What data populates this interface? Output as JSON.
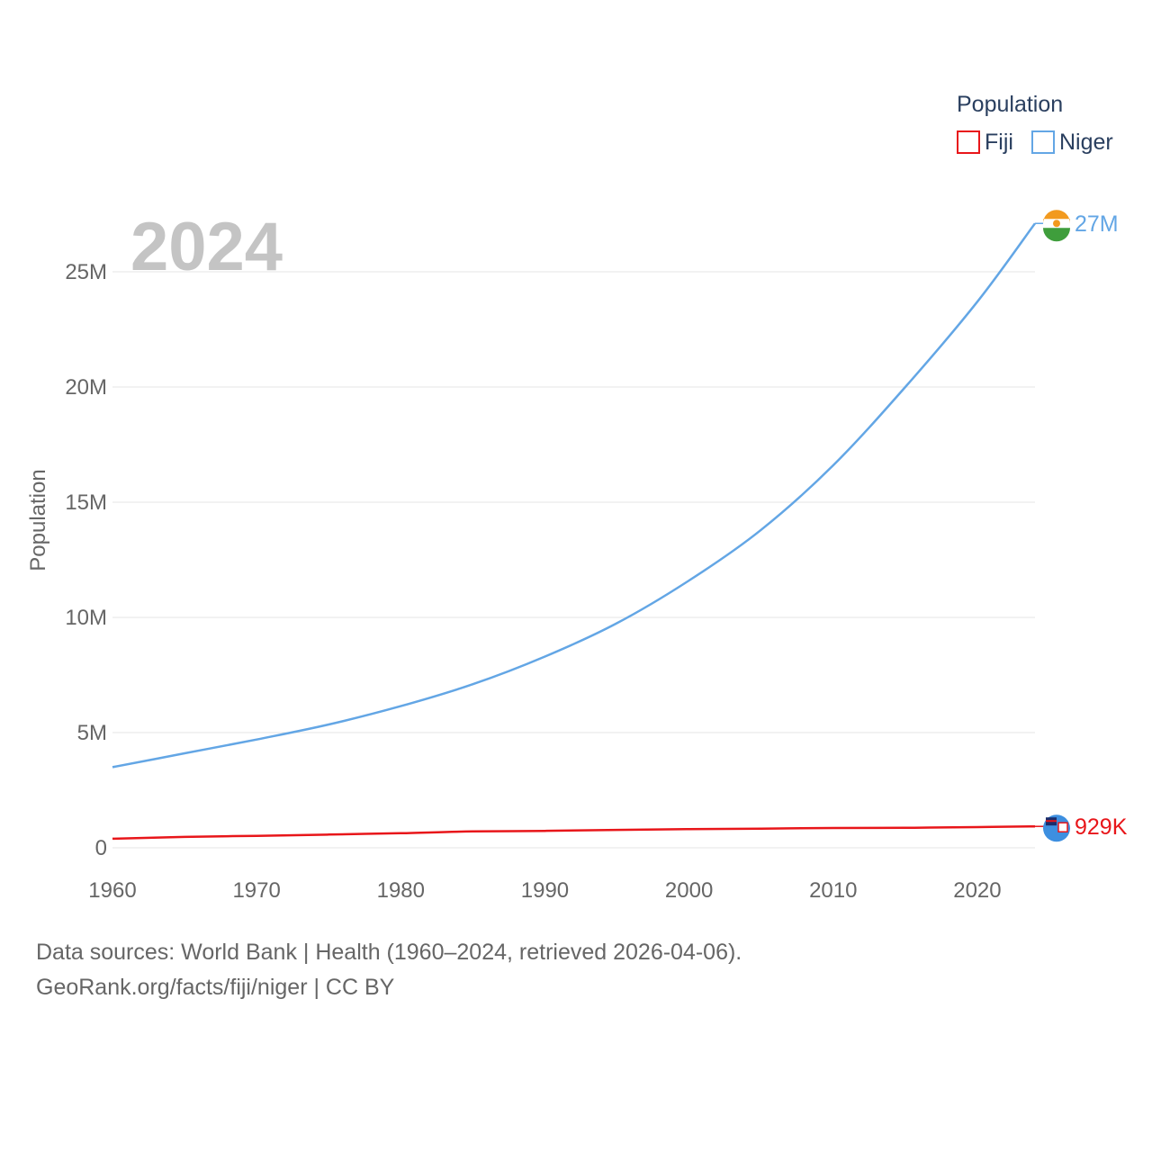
{
  "chart_data": {
    "type": "line",
    "highlight_year": "2024",
    "ylabel": "Population",
    "xlim": [
      1960,
      2024
    ],
    "ylim": [
      0,
      27500000
    ],
    "x_ticks": [
      1960,
      1970,
      1980,
      1990,
      2000,
      2010,
      2020
    ],
    "x_tick_labels": [
      "1960",
      "1970",
      "1980",
      "1990",
      "2000",
      "2010",
      "2020"
    ],
    "y_ticks": [
      0,
      5000000,
      10000000,
      15000000,
      20000000,
      25000000
    ],
    "y_tick_labels": [
      "0",
      "5M",
      "10M",
      "15M",
      "20M",
      "25M"
    ],
    "legend": {
      "title": "Population",
      "position": "top-right",
      "entries": [
        "Fiji",
        "Niger"
      ]
    },
    "x": [
      1960,
      1965,
      1970,
      1975,
      1980,
      1985,
      1990,
      1995,
      2000,
      2005,
      2010,
      2015,
      2020,
      2024
    ],
    "series": [
      {
        "name": "Fiji",
        "color": "#e8161a",
        "end_label": "929K",
        "values": [
          394000,
          473000,
          521000,
          576000,
          634000,
          710000,
          733000,
          776000,
          812000,
          832000,
          860000,
          869000,
          900000,
          929000
        ]
      },
      {
        "name": "Niger",
        "color": "#63a6e5",
        "end_label": "27M",
        "values": [
          3500000,
          4100000,
          4700000,
          5350000,
          6150000,
          7100000,
          8300000,
          9750000,
          11600000,
          13800000,
          16600000,
          20000000,
          23700000,
          27100000
        ]
      }
    ]
  },
  "footer": {
    "source_line": "Data sources: World Bank | Health (1960–2024, retrieved 2026-04-06).",
    "url_line": "GeoRank.org/facts/fiji/niger | CC BY"
  }
}
